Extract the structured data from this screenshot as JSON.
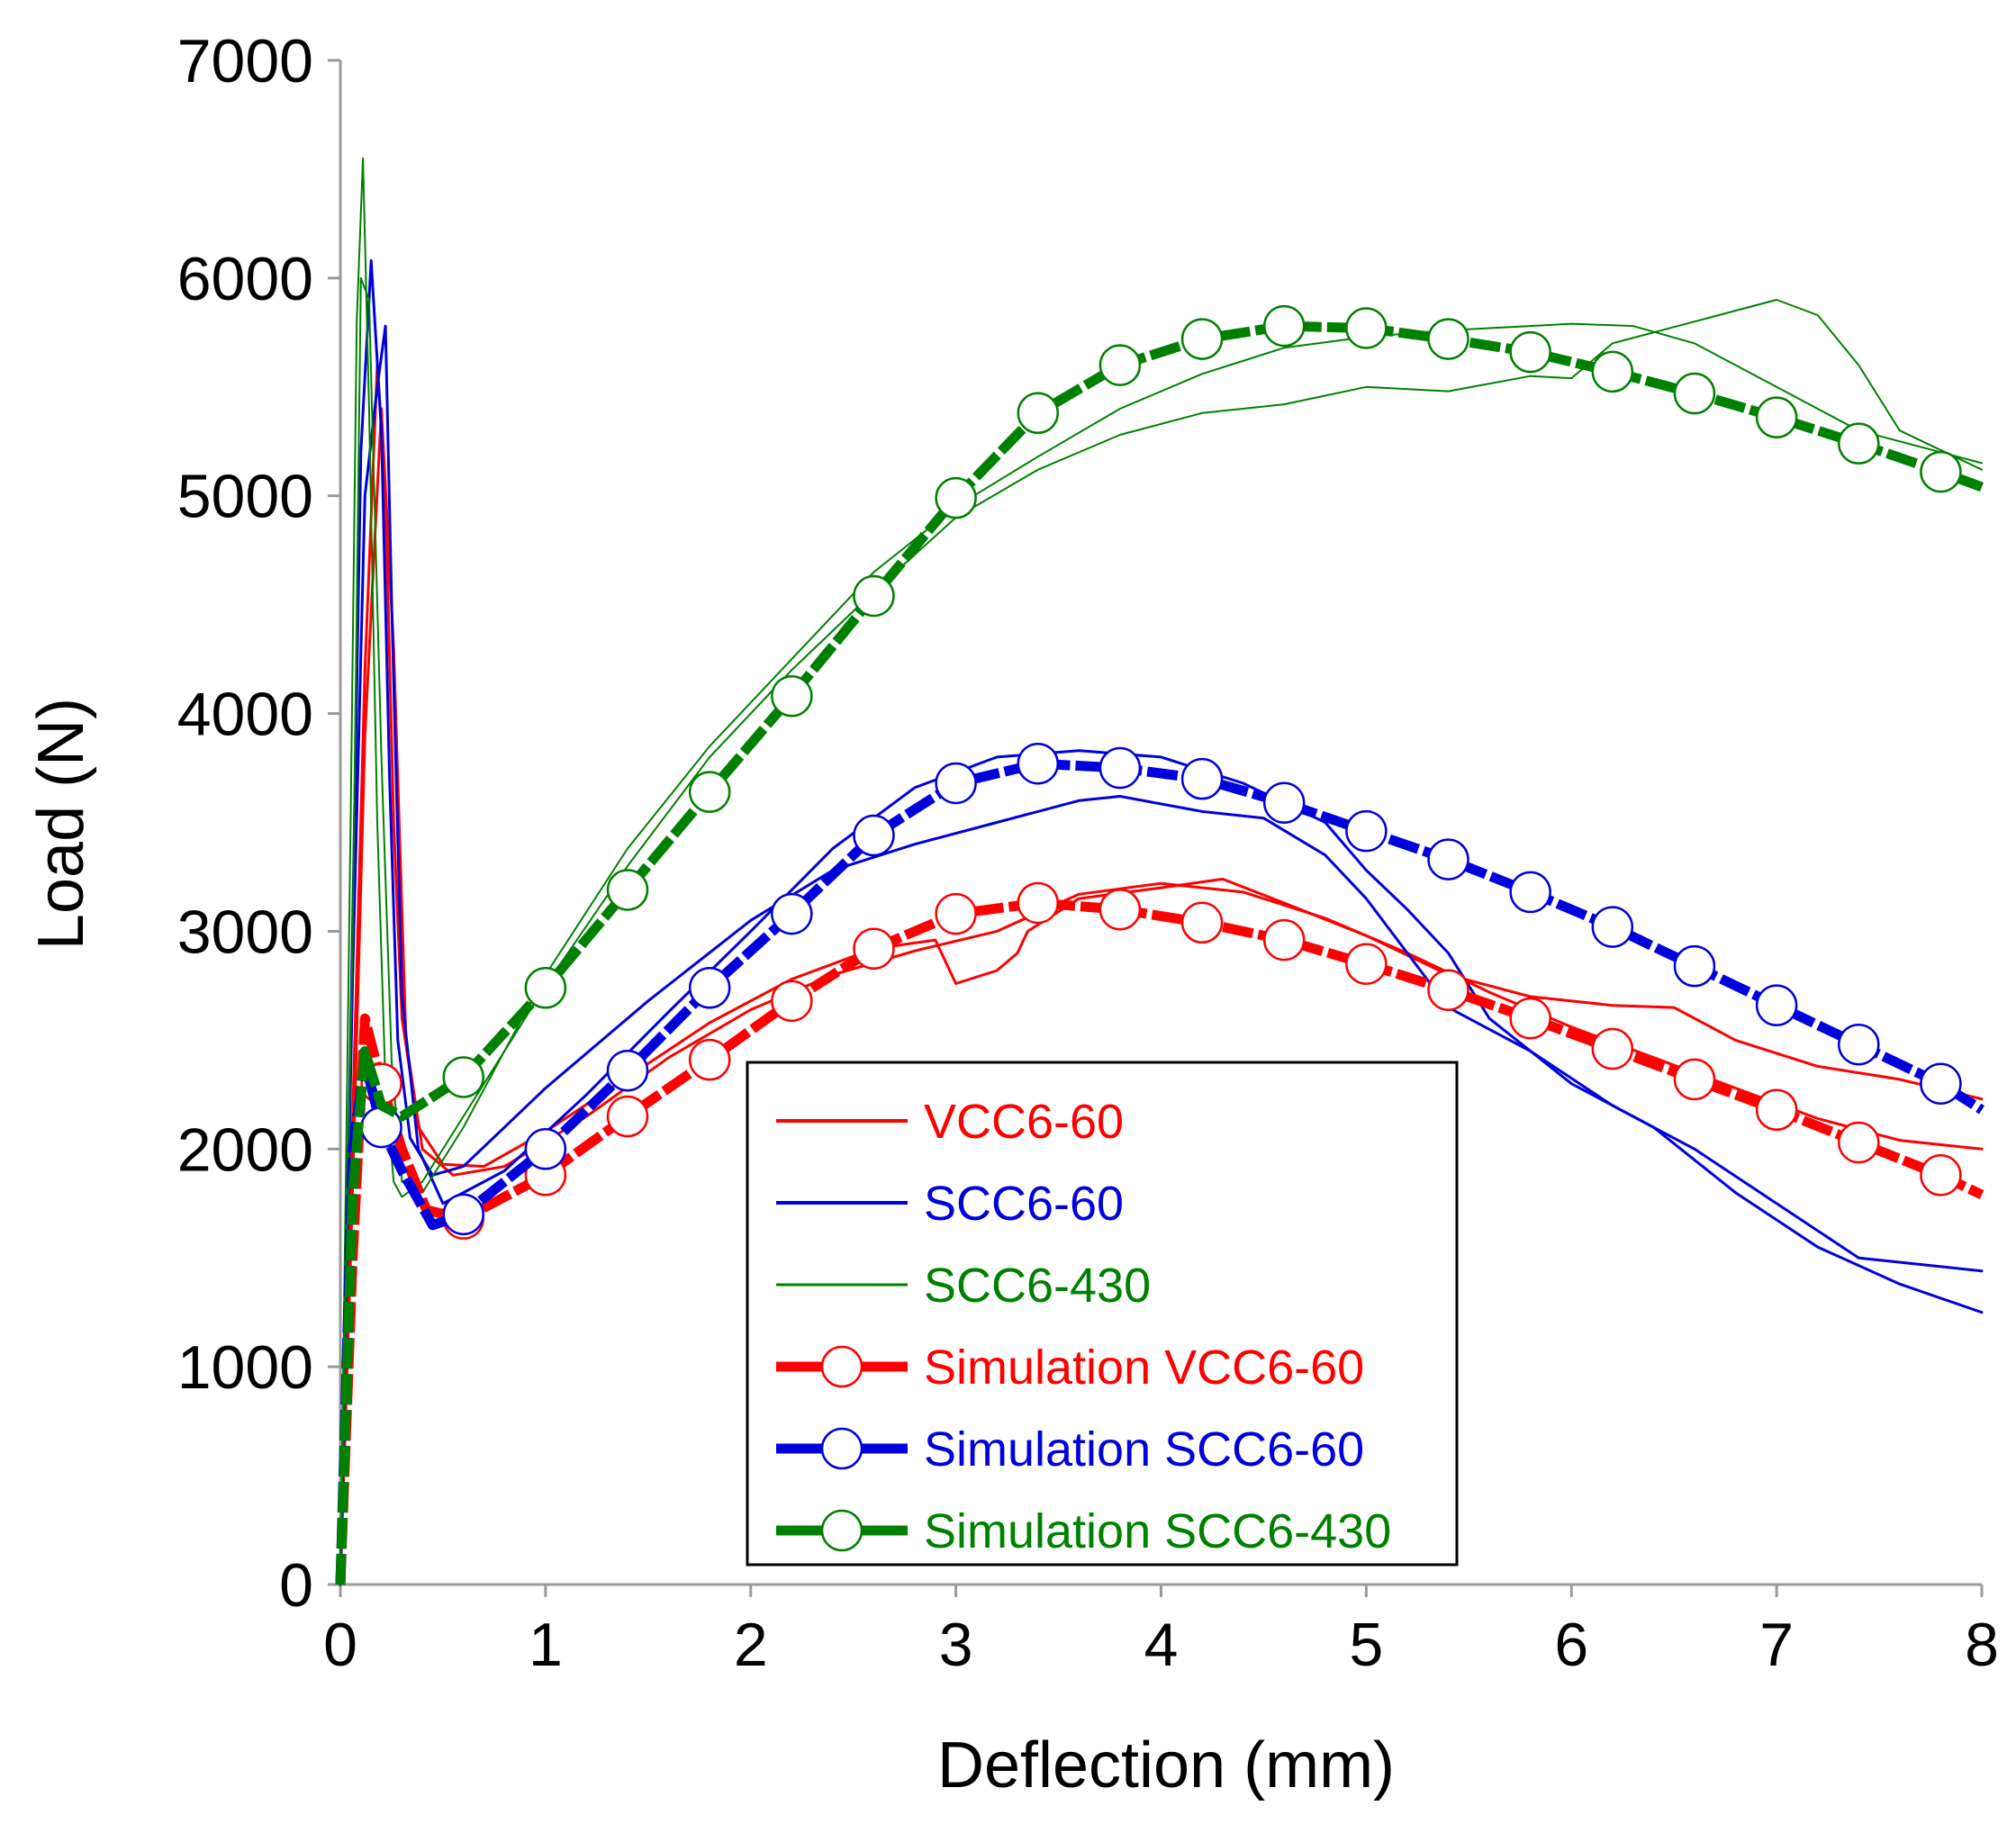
{
  "chart_data": {
    "type": "line",
    "title": "",
    "xlabel": "Deflection (mm)",
    "ylabel": "Load (N)",
    "xlim": [
      0,
      8
    ],
    "ylim": [
      0,
      7000
    ],
    "xticks": [
      "0",
      "1",
      "2",
      "3",
      "4",
      "5",
      "6",
      "7",
      "8"
    ],
    "yticks": [
      "0",
      "1000",
      "2000",
      "3000",
      "4000",
      "5000",
      "6000",
      "7000"
    ],
    "grid": false,
    "legend_position": "bottom-center",
    "colors": {
      "red": "#ff0000",
      "blue": "#0000dd",
      "green": "#008000"
    },
    "series": [
      {
        "name": "VCC6-60",
        "kind": "experimental",
        "color": "#ff0000",
        "width": 3,
        "curves": [
          [
            [
              0,
              0
            ],
            [
              0.05,
              1800
            ],
            [
              0.12,
              4200
            ],
            [
              0.18,
              5600
            ],
            [
              0.22,
              5000
            ],
            [
              0.26,
              3500
            ],
            [
              0.3,
              2600
            ],
            [
              0.38,
              2100
            ],
            [
              0.5,
              1930
            ],
            [
              0.7,
              1920
            ],
            [
              1,
              2080
            ],
            [
              1.4,
              2330
            ],
            [
              1.8,
              2580
            ],
            [
              2.2,
              2780
            ],
            [
              2.6,
              2920
            ],
            [
              2.9,
              2960
            ],
            [
              3.0,
              2760
            ],
            [
              3.2,
              2820
            ],
            [
              3.3,
              2900
            ],
            [
              3.35,
              3000
            ],
            [
              3.6,
              3150
            ],
            [
              4.0,
              3200
            ],
            [
              4.3,
              3240
            ],
            [
              4.6,
              3130
            ],
            [
              5.0,
              2980
            ],
            [
              5.4,
              2800
            ],
            [
              5.8,
              2700
            ],
            [
              6.2,
              2660
            ],
            [
              6.5,
              2650
            ],
            [
              6.8,
              2500
            ],
            [
              7.2,
              2380
            ],
            [
              7.6,
              2320
            ],
            [
              8,
              2230
            ]
          ],
          [
            [
              0,
              0
            ],
            [
              0.05,
              1500
            ],
            [
              0.12,
              3900
            ],
            [
              0.2,
              5400
            ],
            [
              0.26,
              4300
            ],
            [
              0.32,
              2500
            ],
            [
              0.4,
              2000
            ],
            [
              0.55,
              1880
            ],
            [
              0.8,
              1920
            ],
            [
              1.2,
              2150
            ],
            [
              1.6,
              2420
            ],
            [
              2.0,
              2640
            ],
            [
              2.4,
              2800
            ],
            [
              2.8,
              2910
            ],
            [
              3.2,
              3000
            ],
            [
              3.6,
              3170
            ],
            [
              4.0,
              3220
            ],
            [
              4.4,
              3180
            ],
            [
              4.8,
              3060
            ],
            [
              5.2,
              2900
            ],
            [
              5.6,
              2720
            ],
            [
              6.0,
              2560
            ],
            [
              6.4,
              2420
            ],
            [
              6.8,
              2280
            ],
            [
              7.2,
              2140
            ],
            [
              7.6,
              2040
            ],
            [
              8,
              2000
            ]
          ]
        ]
      },
      {
        "name": "SCC6-60",
        "kind": "experimental",
        "color": "#0000dd",
        "width": 3,
        "curves": [
          [
            [
              0,
              0
            ],
            [
              0.05,
              2500
            ],
            [
              0.1,
              5200
            ],
            [
              0.15,
              6080
            ],
            [
              0.2,
              5300
            ],
            [
              0.24,
              3700
            ],
            [
              0.28,
              2500
            ],
            [
              0.34,
              2050
            ],
            [
              0.45,
              1880
            ],
            [
              0.6,
              1920
            ],
            [
              1.0,
              2280
            ],
            [
              1.5,
              2680
            ],
            [
              2.0,
              3050
            ],
            [
              2.4,
              3280
            ],
            [
              2.8,
              3400
            ],
            [
              3.2,
              3500
            ],
            [
              3.6,
              3600
            ],
            [
              3.8,
              3620
            ],
            [
              4.2,
              3550
            ],
            [
              4.5,
              3520
            ],
            [
              4.8,
              3350
            ],
            [
              5.0,
              3150
            ],
            [
              5.2,
              2900
            ],
            [
              5.4,
              2650
            ],
            [
              5.8,
              2450
            ],
            [
              6.2,
              2200
            ],
            [
              6.6,
              2000
            ],
            [
              7.0,
              1750
            ],
            [
              7.4,
              1500
            ],
            [
              7.8,
              1460
            ],
            [
              8,
              1440
            ]
          ],
          [
            [
              0,
              0
            ],
            [
              0.06,
              2800
            ],
            [
              0.12,
              5000
            ],
            [
              0.18,
              5500
            ],
            [
              0.22,
              5780
            ],
            [
              0.25,
              4500
            ],
            [
              0.3,
              2700
            ],
            [
              0.38,
              2000
            ],
            [
              0.5,
              1750
            ],
            [
              0.8,
              1900
            ],
            [
              1.2,
              2250
            ],
            [
              1.6,
              2630
            ],
            [
              2.0,
              3000
            ],
            [
              2.4,
              3380
            ],
            [
              2.8,
              3660
            ],
            [
              3.2,
              3800
            ],
            [
              3.6,
              3830
            ],
            [
              4.0,
              3800
            ],
            [
              4.4,
              3680
            ],
            [
              4.8,
              3500
            ],
            [
              5.0,
              3280
            ],
            [
              5.2,
              3100
            ],
            [
              5.4,
              2900
            ],
            [
              5.6,
              2600
            ],
            [
              6.0,
              2300
            ],
            [
              6.4,
              2100
            ],
            [
              6.8,
              1800
            ],
            [
              7.2,
              1550
            ],
            [
              7.6,
              1380
            ],
            [
              8,
              1250
            ]
          ]
        ]
      },
      {
        "name": "SCC6-430",
        "kind": "experimental",
        "color": "#008000",
        "width": 2,
        "curves": [
          [
            [
              0,
              0
            ],
            [
              0.05,
              3500
            ],
            [
              0.08,
              5800
            ],
            [
              0.11,
              6550
            ],
            [
              0.14,
              5400
            ],
            [
              0.18,
              3500
            ],
            [
              0.22,
              2300
            ],
            [
              0.26,
              1850
            ],
            [
              0.3,
              1780
            ],
            [
              0.4,
              1850
            ],
            [
              0.6,
              2150
            ],
            [
              1.0,
              2750
            ],
            [
              1.4,
              3300
            ],
            [
              1.8,
              3800
            ],
            [
              2.2,
              4200
            ],
            [
              2.6,
              4560
            ],
            [
              3.0,
              4900
            ],
            [
              3.4,
              5120
            ],
            [
              3.8,
              5280
            ],
            [
              4.2,
              5380
            ],
            [
              4.6,
              5420
            ],
            [
              5.0,
              5500
            ],
            [
              5.4,
              5480
            ],
            [
              5.8,
              5550
            ],
            [
              6.0,
              5540
            ],
            [
              6.2,
              5700
            ],
            [
              6.6,
              5800
            ],
            [
              7.0,
              5900
            ],
            [
              7.2,
              5830
            ],
            [
              7.4,
              5600
            ],
            [
              7.6,
              5300
            ],
            [
              8,
              5120
            ]
          ],
          [
            [
              0,
              0
            ],
            [
              0.06,
              3000
            ],
            [
              0.1,
              6000
            ],
            [
              0.14,
              5900
            ],
            [
              0.2,
              3800
            ],
            [
              0.25,
              2400
            ],
            [
              0.3,
              1850
            ],
            [
              0.4,
              1800
            ],
            [
              0.6,
              2100
            ],
            [
              1.0,
              2800
            ],
            [
              1.4,
              3380
            ],
            [
              1.8,
              3850
            ],
            [
              2.2,
              4250
            ],
            [
              2.6,
              4650
            ],
            [
              3.0,
              4950
            ],
            [
              3.4,
              5180
            ],
            [
              3.8,
              5400
            ],
            [
              4.2,
              5560
            ],
            [
              4.6,
              5680
            ],
            [
              5.0,
              5730
            ],
            [
              5.4,
              5760
            ],
            [
              5.8,
              5780
            ],
            [
              6.0,
              5790
            ],
            [
              6.3,
              5780
            ],
            [
              6.6,
              5700
            ],
            [
              7.0,
              5500
            ],
            [
              7.4,
              5300
            ],
            [
              7.8,
              5200
            ],
            [
              8,
              5150
            ]
          ]
        ]
      },
      {
        "name": "Simulation VCC6-60",
        "kind": "simulation",
        "color": "#ff0000",
        "width": 11,
        "curve": [
          [
            0,
            0
          ],
          [
            0.06,
            1500
          ],
          [
            0.12,
            2600
          ],
          [
            0.2,
            2300
          ],
          [
            0.3,
            2000
          ],
          [
            0.42,
            1720
          ],
          [
            0.6,
            1680
          ],
          [
            1.0,
            1880
          ],
          [
            1.4,
            2150
          ],
          [
            1.8,
            2410
          ],
          [
            2.2,
            2680
          ],
          [
            2.6,
            2920
          ],
          [
            3.0,
            3080
          ],
          [
            3.4,
            3130
          ],
          [
            3.8,
            3100
          ],
          [
            4.2,
            3040
          ],
          [
            4.6,
            2960
          ],
          [
            5.0,
            2850
          ],
          [
            5.4,
            2730
          ],
          [
            5.8,
            2600
          ],
          [
            6.2,
            2460
          ],
          [
            6.6,
            2320
          ],
          [
            7.0,
            2180
          ],
          [
            7.4,
            2030
          ],
          [
            7.8,
            1880
          ],
          [
            8,
            1790
          ]
        ],
        "markers_x": [
          0.2,
          0.6,
          1.0,
          1.4,
          1.8,
          2.2,
          2.6,
          3.0,
          3.4,
          3.8,
          4.2,
          4.6,
          5.0,
          5.4,
          5.8,
          6.2,
          6.6,
          7.0,
          7.4,
          7.8
        ]
      },
      {
        "name": "Simulation SCC6-60",
        "kind": "simulation",
        "color": "#0000dd",
        "width": 11,
        "curve": [
          [
            0,
            0
          ],
          [
            0.06,
            2000
          ],
          [
            0.12,
            2400
          ],
          [
            0.2,
            2100
          ],
          [
            0.3,
            1900
          ],
          [
            0.45,
            1650
          ],
          [
            0.6,
            1700
          ],
          [
            1.0,
            2000
          ],
          [
            1.4,
            2360
          ],
          [
            1.8,
            2740
          ],
          [
            2.2,
            3080
          ],
          [
            2.6,
            3440
          ],
          [
            3.0,
            3680
          ],
          [
            3.4,
            3770
          ],
          [
            3.8,
            3750
          ],
          [
            4.2,
            3700
          ],
          [
            4.6,
            3590
          ],
          [
            5.0,
            3460
          ],
          [
            5.4,
            3330
          ],
          [
            5.8,
            3180
          ],
          [
            6.2,
            3020
          ],
          [
            6.6,
            2840
          ],
          [
            7.0,
            2660
          ],
          [
            7.4,
            2480
          ],
          [
            7.8,
            2300
          ],
          [
            8,
            2180
          ]
        ],
        "markers_x": [
          0.2,
          0.6,
          1.0,
          1.4,
          1.8,
          2.2,
          2.6,
          3.0,
          3.4,
          3.8,
          4.2,
          4.6,
          5.0,
          5.4,
          5.8,
          6.2,
          6.6,
          7.0,
          7.4,
          7.8
        ]
      },
      {
        "name": "Simulation SCC6-430",
        "kind": "simulation",
        "color": "#008000",
        "width": 11,
        "curve": [
          [
            0,
            0
          ],
          [
            0.06,
            1800
          ],
          [
            0.12,
            2450
          ],
          [
            0.2,
            2200
          ],
          [
            0.3,
            2150
          ],
          [
            0.6,
            2330
          ],
          [
            1.0,
            2740
          ],
          [
            1.4,
            3190
          ],
          [
            1.8,
            3640
          ],
          [
            2.2,
            4080
          ],
          [
            2.6,
            4540
          ],
          [
            3.0,
            4990
          ],
          [
            3.4,
            5380
          ],
          [
            3.8,
            5600
          ],
          [
            4.2,
            5720
          ],
          [
            4.6,
            5780
          ],
          [
            5.0,
            5770
          ],
          [
            5.4,
            5720
          ],
          [
            5.8,
            5660
          ],
          [
            6.2,
            5570
          ],
          [
            6.6,
            5470
          ],
          [
            7.0,
            5360
          ],
          [
            7.4,
            5240
          ],
          [
            7.8,
            5110
          ],
          [
            8,
            5040
          ]
        ],
        "markers_x": [
          0.6,
          1.0,
          1.4,
          1.8,
          2.2,
          2.6,
          3.0,
          3.4,
          3.8,
          4.2,
          4.6,
          5.0,
          5.4,
          5.8,
          6.2,
          6.6,
          7.0,
          7.4,
          7.8
        ]
      }
    ]
  }
}
